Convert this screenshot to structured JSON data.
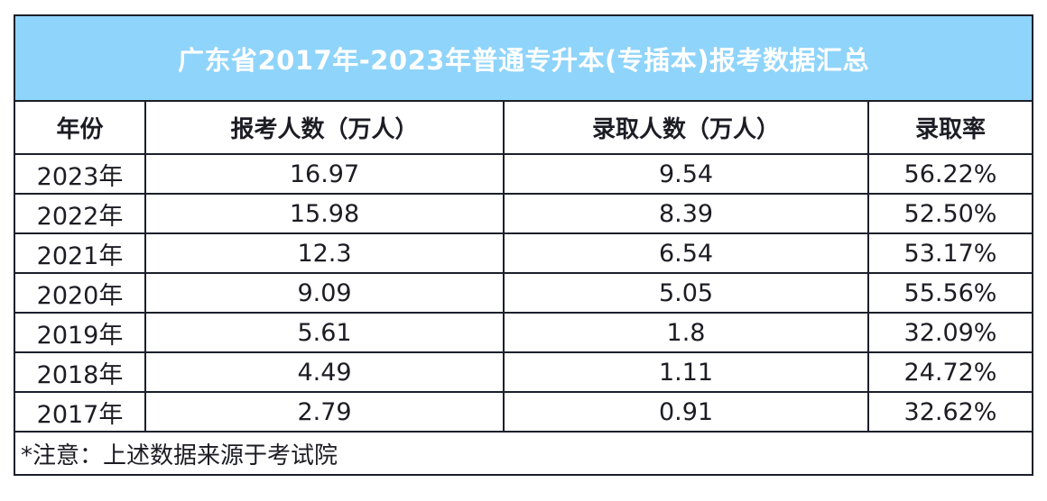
{
  "title": "广东省2017年-2023年普通专升本(专插本)报考数据汇总",
  "headers": [
    "年份",
    "报考人数（万人）",
    "录取人数（万人）",
    "录取率"
  ],
  "rows": [
    {
      "year": "2023年",
      "applicants": "16.97",
      "admitted": "9.54",
      "rate": "56.22%"
    },
    {
      "year": "2022年",
      "applicants": "15.98",
      "admitted": "8.39",
      "rate": "52.50%"
    },
    {
      "year": "2021年",
      "applicants": "12.3",
      "admitted": "6.54",
      "rate": "53.17%"
    },
    {
      "year": "2020年",
      "applicants": "9.09",
      "admitted": "5.05",
      "rate": "55.56%"
    },
    {
      "year": "2019年",
      "applicants": "5.61",
      "admitted": "1.8",
      "rate": "32.09%"
    },
    {
      "year": "2018年",
      "applicants": "4.49",
      "admitted": "1.11",
      "rate": "24.72%"
    },
    {
      "year": "2017年",
      "applicants": "2.79",
      "admitted": "0.91",
      "rate": "32.62%"
    }
  ],
  "footer_note": "*注意：上述数据来源于考试院",
  "colors": {
    "title_band": "#8fd4fb",
    "title_text": "#ffffff",
    "border": "#1b1f2a"
  }
}
